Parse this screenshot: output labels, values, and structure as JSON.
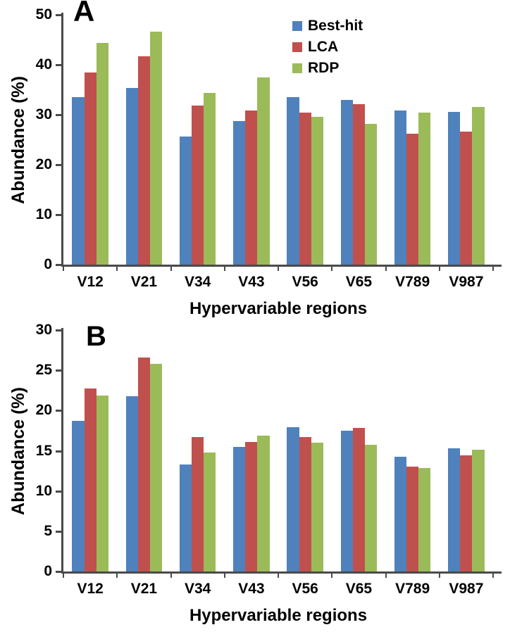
{
  "figure_title": "",
  "colors": {
    "best_hit": "#4F81BD",
    "lca": "#C0504D",
    "rdp": "#9BBB59",
    "axis": "#4a4a4a",
    "text": "#000000",
    "background": "#ffffff"
  },
  "legend": {
    "entries": [
      "Best-hit",
      "LCA",
      "RDP"
    ]
  },
  "chart_data": [
    {
      "type": "bar",
      "panel_label": "A",
      "title": "",
      "xlabel": "Hypervariable regions",
      "ylabel": "Abundance (%)",
      "ylim": [
        0,
        50
      ],
      "ytick_step": 10,
      "ytick_labels": [
        "0",
        "10",
        "20",
        "30",
        "40",
        "50"
      ],
      "grid": false,
      "show_legend": true,
      "legend_position": "top-right-inside",
      "categories": [
        "V12",
        "V21",
        "V34",
        "V43",
        "V56",
        "V65",
        "V789",
        "V987"
      ],
      "series": [
        {
          "name": "Best-hit",
          "color": "#4F81BD",
          "values": [
            33.5,
            35.3,
            25.6,
            28.8,
            33.5,
            33.0,
            30.8,
            30.5
          ]
        },
        {
          "name": "LCA",
          "color": "#C0504D",
          "values": [
            38.5,
            41.7,
            31.9,
            30.9,
            30.4,
            32.1,
            26.2,
            26.6
          ]
        },
        {
          "name": "RDP",
          "color": "#9BBB59",
          "values": [
            44.3,
            46.6,
            34.4,
            37.4,
            29.6,
            28.1,
            30.4,
            31.6
          ]
        }
      ]
    },
    {
      "type": "bar",
      "panel_label": "B",
      "title": "",
      "xlabel": "Hypervariable regions",
      "ylabel": "Abundance (%)",
      "ylim": [
        0,
        30
      ],
      "ytick_step": 5,
      "ytick_labels": [
        "0",
        "5",
        "10",
        "15",
        "20",
        "25",
        "30"
      ],
      "grid": false,
      "show_legend": false,
      "legend_position": "none",
      "categories": [
        "V12",
        "V21",
        "V34",
        "V43",
        "V56",
        "V65",
        "V789",
        "V987"
      ],
      "series": [
        {
          "name": "Best-hit",
          "color": "#4F81BD",
          "values": [
            18.7,
            21.8,
            13.3,
            15.5,
            17.9,
            17.5,
            14.3,
            15.3
          ]
        },
        {
          "name": "LCA",
          "color": "#C0504D",
          "values": [
            22.7,
            26.6,
            16.7,
            16.1,
            16.7,
            17.8,
            13.0,
            14.4
          ]
        },
        {
          "name": "RDP",
          "color": "#9BBB59",
          "values": [
            21.9,
            25.8,
            14.8,
            16.9,
            16.0,
            15.7,
            12.9,
            15.1
          ]
        }
      ]
    }
  ]
}
